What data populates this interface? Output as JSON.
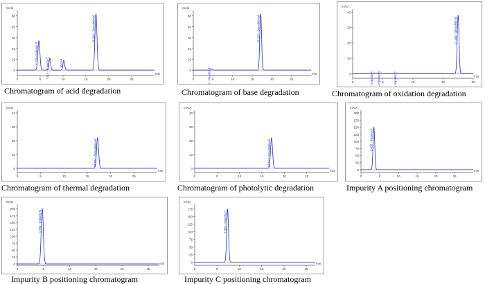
{
  "figure": {
    "panels": [
      {
        "caption": "Chromatogram of acid degradation"
      },
      {
        "caption": "Chromatogram of base degradation"
      },
      {
        "caption": "Chromatogram of oxidation degradation"
      },
      {
        "caption": "Chromatogram of thermal degradation"
      },
      {
        "caption": "Chromatogram of photolytic degradation"
      },
      {
        "caption": "Impurity A positioning chromatogram"
      },
      {
        "caption": "Impurity B positioning chromatogram"
      },
      {
        "caption": "Impurity C positioning chromatogram"
      }
    ]
  },
  "chart_data": [
    {
      "type": "line",
      "title": "Chromatogram of acid degradation",
      "ylabel": "mAU",
      "xlabel": "min",
      "xlim": [
        0,
        30
      ],
      "ylim": [
        -5,
        55
      ],
      "xticks": [
        0,
        5,
        10,
        15,
        20,
        25
      ],
      "yticks": [
        0,
        10,
        20,
        30,
        40,
        50
      ],
      "peaks": [
        {
          "rt": 4.718,
          "height": 27,
          "label": "4.718 - Impurity B"
        },
        {
          "rt": 7.115,
          "height": 11,
          "label": "7.115 - Impurity C"
        },
        {
          "rt": 10.168,
          "height": 9,
          "label": "10.168"
        },
        {
          "rt": 17.196,
          "height": 52,
          "label": "17.196 - Dexrafebmol"
        }
      ]
    },
    {
      "type": "line",
      "title": "Chromatogram of base degradation",
      "ylabel": "mAU",
      "xlabel": "min",
      "xlim": [
        0,
        30
      ],
      "ylim": [
        -5,
        55
      ],
      "xticks": [
        0,
        5,
        10,
        15,
        20,
        25
      ],
      "yticks": [
        0,
        10,
        20,
        30,
        40,
        50
      ],
      "peaks": [
        {
          "rt": 4.718,
          "height": 1,
          "label": "4.718 - Impurity B"
        },
        {
          "rt": 17.165,
          "height": 52,
          "label": "17.165 - Dexrafebmol"
        }
      ]
    },
    {
      "type": "line",
      "title": "Chromatogram of oxidation degradation",
      "ylabel": "mAU",
      "xlabel": "min",
      "xlim": [
        0,
        20
      ],
      "ylim": [
        -3,
        42
      ],
      "xticks": [
        0,
        5,
        10,
        15,
        20
      ],
      "yticks": [
        0,
        10,
        20,
        30,
        40
      ],
      "peaks": [
        {
          "rt": 3.568,
          "height": 0.5,
          "label": "3.568 - Impurity A"
        },
        {
          "rt": 4.744,
          "height": 0.5,
          "label": "4.744 - Impurity B"
        },
        {
          "rt": 7.457,
          "height": 0.5,
          "label": "7.457 - Impurity C"
        },
        {
          "rt": 17.491,
          "height": 38,
          "label": "17.491 - Dexrafebmol"
        }
      ]
    },
    {
      "type": "line",
      "title": "Chromatogram of thermal degradation",
      "ylabel": "mAU",
      "xlabel": "min",
      "xlim": [
        0,
        30
      ],
      "ylim": [
        -3,
        42
      ],
      "xticks": [
        0,
        5,
        10,
        15,
        20,
        25
      ],
      "yticks": [
        0,
        10,
        20,
        30,
        40
      ],
      "peaks": [
        {
          "rt": 17.204,
          "height": 22,
          "label": "17.204 - Dexrafebmol"
        }
      ]
    },
    {
      "type": "line",
      "title": "Chromatogram of photolytic degradation",
      "ylabel": "mAU",
      "xlabel": "min",
      "xlim": [
        0,
        30
      ],
      "ylim": [
        -3,
        42
      ],
      "xticks": [
        0,
        5,
        10,
        15,
        20,
        25
      ],
      "yticks": [
        0,
        10,
        20,
        30,
        40
      ],
      "peaks": [
        {
          "rt": 17.153,
          "height": 22,
          "label": "17.153 - Dexrafebmol"
        }
      ]
    },
    {
      "type": "line",
      "title": "Impurity A positioning chromatogram",
      "ylabel": "mAU",
      "xlabel": "min",
      "xlim": [
        0,
        30
      ],
      "ylim": [
        -10,
        210
      ],
      "xticks": [
        0,
        5,
        10,
        15,
        20,
        25
      ],
      "yticks": [
        0,
        25,
        50,
        75,
        100,
        125,
        150,
        175,
        200
      ],
      "peaks": [
        {
          "rt": 3.458,
          "height": 150,
          "label": "3.458 - Impurity A"
        }
      ]
    },
    {
      "type": "line",
      "title": "Impurity B positioning chromatogram",
      "ylabel": "mAU",
      "xlabel": "min",
      "xlim": [
        0,
        27
      ],
      "ylim": [
        -5,
        215
      ],
      "xticks": [
        0,
        5,
        10,
        15,
        20,
        25
      ],
      "yticks": [
        0,
        25,
        50,
        75,
        100,
        125,
        150,
        175,
        200
      ],
      "peaks": [
        {
          "rt": 4.763,
          "height": 200,
          "label": "4.763 - Impurity B"
        }
      ]
    },
    {
      "type": "line",
      "title": "Impurity C positioning chromatogram",
      "ylabel": "mAU",
      "xlabel": "min",
      "xlim": [
        0,
        27
      ],
      "ylim": [
        -10,
        190
      ],
      "xticks": [
        0,
        5,
        10,
        15,
        20,
        25
      ],
      "yticks": [
        0,
        25,
        50,
        75,
        100,
        125,
        150,
        175
      ],
      "peaks": [
        {
          "rt": 7.369,
          "height": 175,
          "label": "7.369 - Impurity C"
        }
      ]
    }
  ]
}
